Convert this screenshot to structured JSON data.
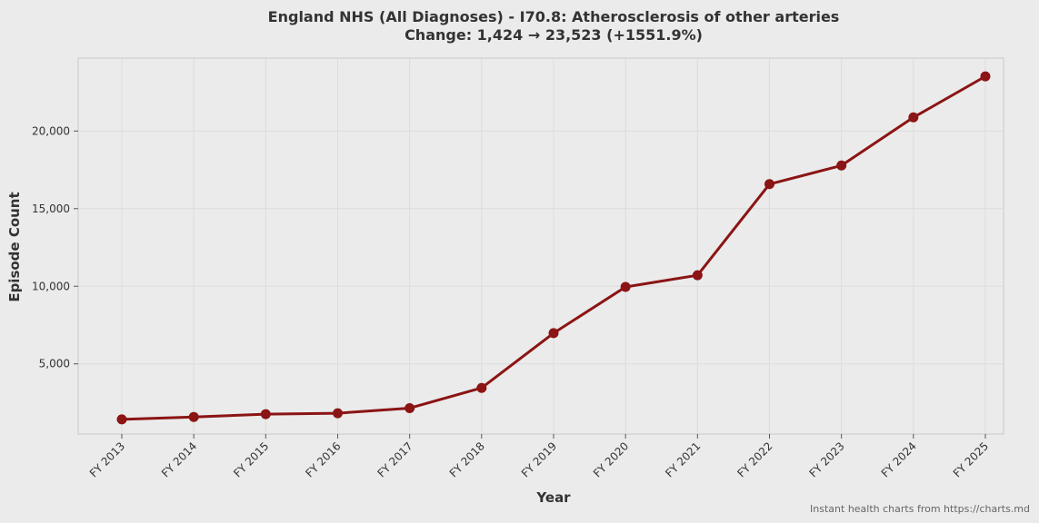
{
  "chart_data": {
    "type": "line",
    "title": "England NHS (All Diagnoses) - I70.8: Atherosclerosis of other arteries",
    "subtitle": "Change: 1,424 → 23,523 (+1551.9%)",
    "xlabel": "Year",
    "ylabel": "Episode Count",
    "categories": [
      "FY 2013",
      "FY 2014",
      "FY 2015",
      "FY 2016",
      "FY 2017",
      "FY 2018",
      "FY 2019",
      "FY 2020",
      "FY 2021",
      "FY 2022",
      "FY 2023",
      "FY 2024",
      "FY 2025"
    ],
    "series": [
      {
        "values": [
          1424,
          1580,
          1760,
          1820,
          2150,
          3450,
          6980,
          9960,
          10710,
          16580,
          17780,
          20880,
          23523
        ],
        "color": "#8b1414"
      }
    ],
    "yticks": [
      5000,
      10000,
      15000,
      20000
    ],
    "ytick_labels": [
      "5,000",
      "10,000",
      "15,000",
      "20,000"
    ],
    "ylim": [
      480,
      24700
    ],
    "grid": true,
    "legend": "none"
  },
  "source_note": "Instant health charts from https://charts.md",
  "colors": {
    "background": "#ebebeb",
    "plot_border": "#c8c8c8",
    "grid": "#dcdcdc",
    "line": "#8b1414",
    "text": "#333333"
  }
}
